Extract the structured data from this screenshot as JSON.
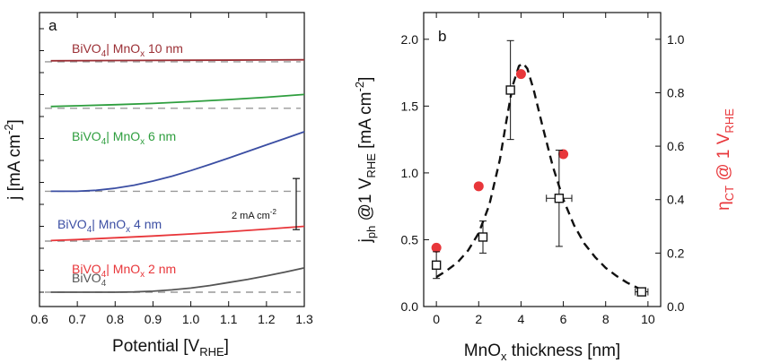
{
  "chart_data": [
    {
      "panel": "a",
      "type": "line",
      "xlabel": "Potential [V",
      "xlabel_sub": "RHE",
      "xlabel_close": "]",
      "ylabel": "j [mA cm",
      "ylabel_sup": "-2",
      "ylabel_close": "]",
      "xlim": [
        0.6,
        1.3
      ],
      "x_ticks": [
        "0.6",
        "0.7",
        "0.8",
        "0.9",
        "1.0",
        "1.1",
        "1.2",
        "1.3"
      ],
      "y_unit": "mA cm-2 (vertically offset curves)",
      "scale_bar_label": "2 mA cm",
      "scale_bar_sup": "-2",
      "scale_bar_value": 2,
      "series": [
        {
          "name": "BiVO4",
          "label_parts": {
            "a": "BiVO",
            "a_sub": "4",
            "b": "",
            "b_sub": "",
            "c": ""
          },
          "color": "#555555",
          "baseline": 0.0,
          "x": [
            0.63,
            0.7,
            0.8,
            0.85,
            0.9,
            0.95,
            1.0,
            1.05,
            1.1,
            1.15,
            1.2,
            1.25,
            1.3
          ],
          "y": [
            0.0,
            0.0,
            0.0,
            0.01,
            0.04,
            0.09,
            0.16,
            0.26,
            0.38,
            0.5,
            0.64,
            0.79,
            0.95
          ]
        },
        {
          "name": "BiVO4| MnOx 2 nm",
          "label_parts": {
            "a": "BiVO",
            "a_sub": "4",
            "b": "| MnO",
            "b_sub": "x",
            "c": " 2 nm"
          },
          "color": "#e8363a",
          "baseline": 2.0,
          "x": [
            0.63,
            0.7,
            0.8,
            0.9,
            1.0,
            1.1,
            1.2,
            1.3
          ],
          "y": [
            2.02,
            2.06,
            2.13,
            2.2,
            2.28,
            2.37,
            2.47,
            2.58
          ]
        },
        {
          "name": "BiVO4| MnOx 4 nm",
          "label_parts": {
            "a": "BiVO",
            "a_sub": "4",
            "b": "| MnO",
            "b_sub": "x",
            "c": " 4 nm"
          },
          "color": "#3b4ea3",
          "baseline": 3.95,
          "x": [
            0.63,
            0.7,
            0.75,
            0.8,
            0.85,
            0.9,
            0.95,
            1.0,
            1.05,
            1.1,
            1.15,
            1.2,
            1.25,
            1.3
          ],
          "y": [
            3.95,
            3.95,
            3.99,
            4.07,
            4.19,
            4.35,
            4.54,
            4.76,
            5.0,
            5.25,
            5.51,
            5.77,
            6.02,
            6.28
          ]
        },
        {
          "name": "BiVO4| MnOx 6 nm",
          "label_parts": {
            "a": "BiVO",
            "a_sub": "4",
            "b": "| MnO",
            "b_sub": "x",
            "c": " 6 nm"
          },
          "color": "#2e9e3e",
          "baseline": 7.2,
          "x": [
            0.63,
            0.7,
            0.8,
            0.9,
            1.0,
            1.1,
            1.2,
            1.3
          ],
          "y": [
            7.27,
            7.3,
            7.34,
            7.39,
            7.46,
            7.54,
            7.63,
            7.74
          ]
        },
        {
          "name": "BiVO4| MnOx 10 nm",
          "label_parts": {
            "a": "BiVO",
            "a_sub": "4",
            "b": "| MnO",
            "b_sub": "x",
            "c": " 10 nm"
          },
          "color": "#9b2f35",
          "baseline": 9.02,
          "x": [
            0.63,
            0.8,
            1.0,
            1.2,
            1.3
          ],
          "y": [
            9.06,
            9.07,
            9.08,
            9.09,
            9.1
          ]
        }
      ]
    },
    {
      "panel": "b",
      "type": "scatter",
      "xlabel": "MnO",
      "xlabel_sub": "x",
      "xlabel_rest": " thickness [nm]",
      "ylabel": "j",
      "ylabel_sub": "ph",
      "ylabel_mid": " @1 V",
      "ylabel_sub2": "RHE",
      "ylabel_rest": " [mA cm",
      "ylabel_sup": "-2",
      "ylabel_close": "]",
      "y2label": "η",
      "y2label_sub": "CT",
      "y2label_rest": " @ 1 V",
      "y2label_sub2": "RHE",
      "xlim": [
        -0.6,
        10.6
      ],
      "ylim": [
        0,
        2.2
      ],
      "y2lim": [
        0,
        1.1
      ],
      "x_ticks": [
        "0",
        "2",
        "4",
        "6",
        "8",
        "10"
      ],
      "y_ticks": [
        "0.0",
        "0.5",
        "1.0",
        "1.5",
        "2.0"
      ],
      "y2_ticks": [
        "0.0",
        "0.2",
        "0.4",
        "0.6",
        "0.8",
        "1.0"
      ],
      "y2_color": "#e8363a",
      "series": [
        {
          "marker": "open-square",
          "color": "#111111",
          "points": [
            {
              "x": 0,
              "y": 0.31,
              "yerr": 0.1,
              "xerr": 0
            },
            {
              "x": 2.2,
              "y": 0.52,
              "yerr": 0.12,
              "xerr": 0
            },
            {
              "x": 3.5,
              "y": 1.62,
              "yerr": 0.37,
              "xerr": 0
            },
            {
              "x": 5.8,
              "y": 0.81,
              "yerr": 0.36,
              "xerr": 0.6
            },
            {
              "x": 9.7,
              "y": 0.11,
              "yerr": 0.02,
              "xerr": 0.3
            }
          ]
        },
        {
          "marker": "filled-circle",
          "color": "#e8363a",
          "axis": "right",
          "points": [
            {
              "x": 0,
              "y": 0.22
            },
            {
              "x": 2.0,
              "y": 0.45
            },
            {
              "x": 4.0,
              "y": 0.87
            },
            {
              "x": 6.0,
              "y": 0.57
            }
          ]
        },
        {
          "line": "dashed-fit",
          "color": "#111111",
          "x": [
            0,
            0.5,
            1.0,
            1.5,
            2.0,
            2.5,
            3.0,
            3.3,
            3.6,
            3.9,
            4.1,
            4.3,
            4.6,
            5.0,
            5.5,
            6.0,
            6.5,
            7.0,
            7.5,
            8.0,
            8.5,
            9.0,
            9.5,
            9.9
          ],
          "y": [
            0.22,
            0.27,
            0.33,
            0.42,
            0.55,
            0.76,
            1.1,
            1.38,
            1.65,
            1.8,
            1.82,
            1.78,
            1.62,
            1.36,
            1.05,
            0.8,
            0.61,
            0.47,
            0.37,
            0.29,
            0.23,
            0.18,
            0.14,
            0.11
          ]
        }
      ]
    }
  ]
}
